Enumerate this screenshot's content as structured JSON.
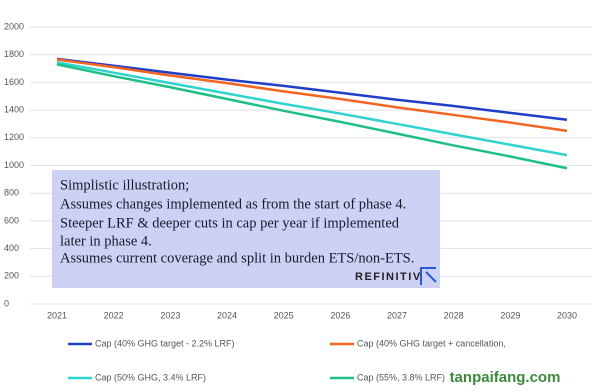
{
  "chart_data": {
    "type": "line",
    "x": [
      "2021",
      "2022",
      "2023",
      "2024",
      "2025",
      "2026",
      "2027",
      "2028",
      "2029",
      "2030"
    ],
    "series": [
      {
        "name": "Cap (40% GHG target - 2.2% LRF)",
        "color": "#1f3fc8",
        "values": [
          1770,
          1720,
          1670,
          1620,
          1575,
          1525,
          1475,
          1430,
          1380,
          1330
        ]
      },
      {
        "name": "Cap (40% GHG target + cancellation,",
        "color": "#f26522",
        "values": [
          1765,
          1710,
          1650,
          1595,
          1535,
          1480,
          1420,
          1365,
          1310,
          1250
        ]
      },
      {
        "name": "Cap (50% GHG, 3.4% LRF)",
        "color": "#2fd3cf",
        "values": [
          1745,
          1670,
          1595,
          1520,
          1445,
          1375,
          1300,
          1225,
          1150,
          1075
        ]
      },
      {
        "name": "Cap (55%, 3.8% LRF)",
        "color": "#1fbf86",
        "values": [
          1730,
          1645,
          1565,
          1480,
          1395,
          1315,
          1230,
          1145,
          1065,
          980
        ]
      }
    ],
    "ylim": [
      0,
      2000
    ],
    "yticks": [
      0,
      200,
      400,
      600,
      800,
      1000,
      1200,
      1400,
      1600,
      1800,
      2000
    ],
    "grid": true,
    "annotations": [
      "Simplistic illustration;",
      "Assumes changes implemented as from the start of phase 4.",
      "Steeper LRF & deeper cuts in cap per year if implemented",
      "later in phase 4.",
      "Assumes current coverage and split in burden ETS/non-ETS."
    ],
    "source": "REFINITIV",
    "watermark": "tanpaifang.com"
  }
}
